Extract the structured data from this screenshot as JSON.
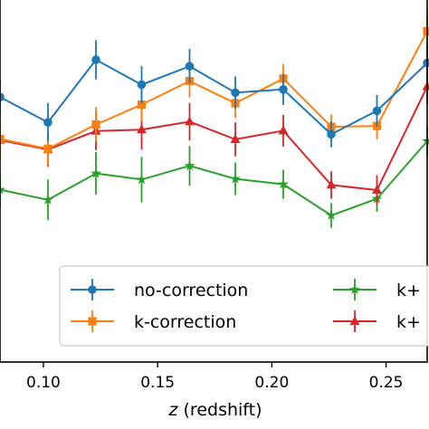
{
  "chart_data": {
    "type": "line",
    "xlabel_italic": "z",
    "xlabel_rest": " (redshift)",
    "xlim": [
      0.081,
      0.268
    ],
    "ylim": [
      0,
      100
    ],
    "xticks": [
      0.1,
      0.15,
      0.2,
      0.25
    ],
    "xtick_labels": [
      "0.10",
      "0.15",
      "0.20",
      "0.25"
    ],
    "x": [
      0.081,
      0.102,
      0.123,
      0.143,
      0.164,
      0.184,
      0.205,
      0.226,
      0.246,
      0.268
    ],
    "legend_position": "lower-right",
    "series": [
      {
        "name": "no-correction",
        "color": "#1f77b4",
        "marker": "circle",
        "values": [
          73.2,
          66.2,
          83.5,
          76.6,
          81.7,
          74.4,
          75.3,
          62.9,
          69.4,
          82.6
        ],
        "errors": [
          5.0,
          5.3,
          5.4,
          5.2,
          4.8,
          4.5,
          4.3,
          3.6,
          4.4,
          4.6
        ]
      },
      {
        "name": "k-correction",
        "color": "#ff7f0e",
        "marker": "square",
        "values": [
          61.6,
          58.9,
          65.6,
          71.1,
          77.6,
          71.5,
          78.3,
          65.0,
          65.2,
          91.4
        ],
        "errors": [
          4.8,
          4.6,
          4.8,
          4.6,
          4.5,
          4.1,
          4.0,
          3.4,
          3.7,
          5.7
        ]
      },
      {
        "name": "",
        "color": "#2ca02c",
        "marker": "star",
        "values": [
          47.6,
          44.8,
          52.1,
          50.4,
          54.2,
          50.6,
          49.1,
          40.5,
          45.1,
          61.0
        ],
        "errors": [
          4.8,
          5.6,
          5.9,
          6.3,
          5.5,
          4.5,
          4.0,
          3.4,
          3.6,
          4.3
        ]
      },
      {
        "name": "",
        "color": "#d62728",
        "marker": "triangle",
        "values": [
          61.3,
          58.7,
          63.8,
          64.2,
          66.4,
          61.5,
          63.9,
          48.9,
          47.5,
          76.1
        ],
        "errors": [
          4.7,
          4.8,
          5.3,
          5.5,
          5.2,
          4.7,
          4.4,
          3.8,
          4.1,
          4.8
        ]
      }
    ],
    "legend_entries": [
      {
        "label": "no-correction",
        "series": 0
      },
      {
        "label": "k-correction",
        "series": 1
      },
      {
        "label": "k+",
        "series": 2
      },
      {
        "label": "k+",
        "series": 3
      }
    ]
  }
}
